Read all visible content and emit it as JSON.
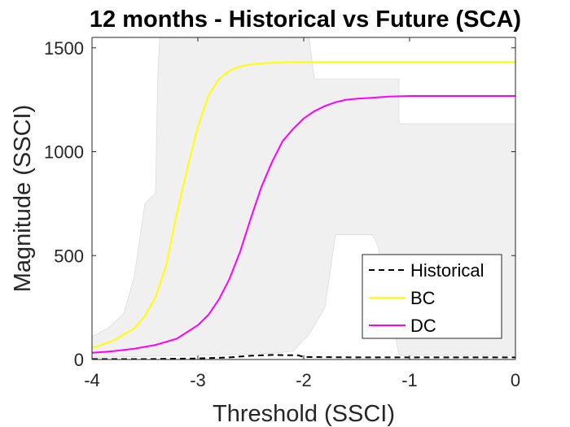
{
  "chart_data": {
    "type": "line",
    "title": "12 months - Historical vs Future (SCA)",
    "xlabel": "Threshold (SSCI)",
    "ylabel": "Magnitude (SSCI)",
    "xlim": [
      -4,
      0
    ],
    "ylim": [
      0,
      1550
    ],
    "xticks": [
      -4,
      -3,
      -2,
      -1,
      0
    ],
    "xtick_labels": [
      "-4",
      "-3",
      "-2",
      "-1",
      "0"
    ],
    "yticks": [
      0,
      500,
      1000,
      1500
    ],
    "ytick_labels": [
      "0",
      "500",
      "1000",
      "1500"
    ],
    "grid": false,
    "legend_position": "bottom-right",
    "shaded_band": {
      "color": "#f0f0f0",
      "upper": {
        "x": [
          -4,
          -3.85,
          -3.7,
          -3.6,
          -3.5,
          -3.4,
          -3.38,
          -3.36,
          -3.35,
          -3.35,
          -2.55,
          -2.45,
          -2.35,
          -2.2,
          -2.1,
          -1.95,
          -1.9,
          -1.1,
          -1.1,
          0
        ],
        "y": [
          110,
          150,
          220,
          400,
          750,
          800,
          1350,
          1550,
          1550,
          1550,
          1550,
          1550,
          1550,
          1550,
          1550,
          1550,
          1350,
          1350,
          1135,
          1135
        ]
      },
      "lower": {
        "x": [
          -4,
          -3.5,
          -3.0,
          -2.6,
          -2.3,
          -2.1,
          -1.95,
          -1.8,
          -1.7,
          -1.6,
          -1.35,
          -1.3,
          -1.1,
          0
        ],
        "y": [
          10,
          15,
          20,
          25,
          30,
          40,
          120,
          250,
          600,
          600,
          600,
          550,
          20,
          20
        ]
      }
    },
    "series": [
      {
        "name": "Historical",
        "color": "#000000",
        "style": "dashed",
        "x": [
          -4,
          -3.5,
          -3.0,
          -2.7,
          -2.5,
          -2.3,
          -2.05,
          -2.0,
          -1.5,
          -1.0,
          -0.5,
          0
        ],
        "y": [
          2,
          2,
          5,
          10,
          18,
          22,
          20,
          12,
          10,
          10,
          10,
          10
        ]
      },
      {
        "name": "BC",
        "color": "#ffff00",
        "style": "solid",
        "x": [
          -4,
          -3.8,
          -3.6,
          -3.5,
          -3.4,
          -3.3,
          -3.2,
          -3.1,
          -3.0,
          -2.9,
          -2.8,
          -2.7,
          -2.6,
          -2.5,
          -2.4,
          -2.3,
          -2.2,
          -2.1,
          -2.0,
          -1.5,
          -1.0,
          0
        ],
        "y": [
          55,
          90,
          150,
          210,
          300,
          450,
          700,
          920,
          1120,
          1270,
          1350,
          1390,
          1410,
          1420,
          1425,
          1428,
          1430,
          1432,
          1432,
          1432,
          1432,
          1432
        ]
      },
      {
        "name": "DC",
        "color": "#ff00ff",
        "style": "solid",
        "x": [
          -4,
          -3.8,
          -3.6,
          -3.4,
          -3.2,
          -3.0,
          -2.9,
          -2.8,
          -2.7,
          -2.6,
          -2.5,
          -2.4,
          -2.3,
          -2.2,
          -2.1,
          -2.0,
          -1.9,
          -1.8,
          -1.7,
          -1.6,
          -1.5,
          -1.4,
          -1.2,
          -1.0,
          0
        ],
        "y": [
          32,
          40,
          52,
          70,
          100,
          165,
          215,
          290,
          390,
          520,
          680,
          830,
          950,
          1050,
          1110,
          1160,
          1195,
          1220,
          1238,
          1250,
          1255,
          1258,
          1265,
          1268,
          1268
        ]
      }
    ]
  }
}
